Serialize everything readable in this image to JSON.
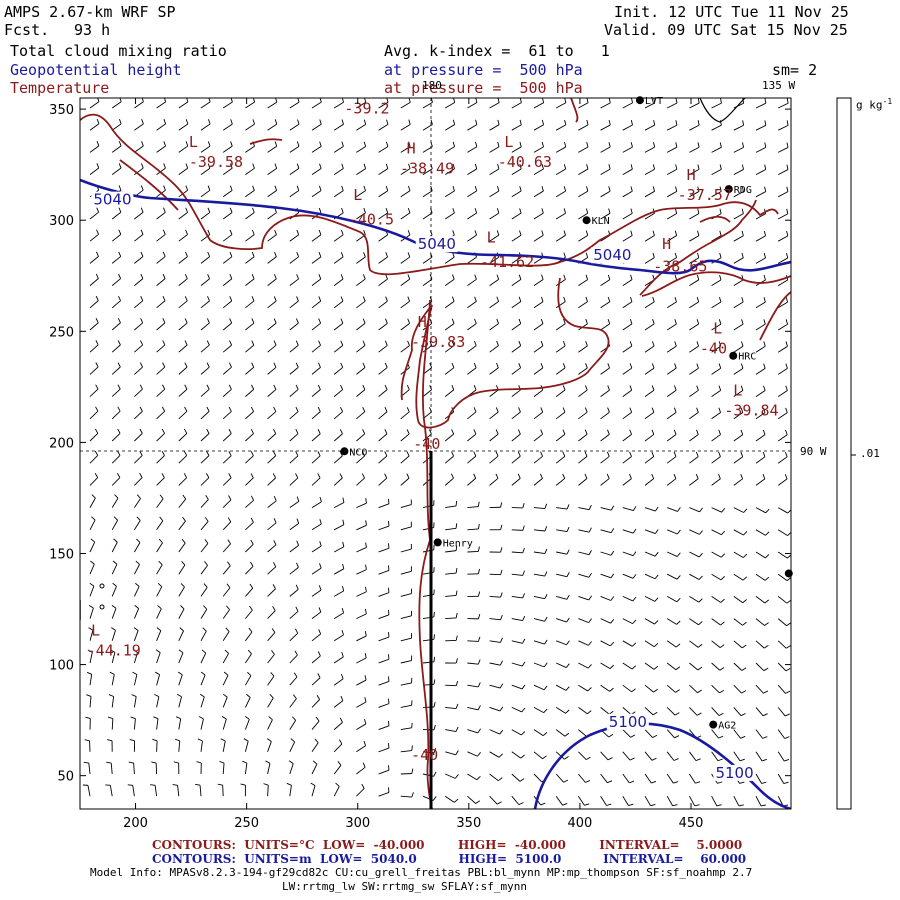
{
  "header": {
    "model": "AMPS 2.67-km WRF SP",
    "fcst_label": "Fcst.",
    "fcst_value": "93 h",
    "init": "Init. 12 UTC Tue 11 Nov 25",
    "valid": "Valid. 09 UTC Sat 15 Nov 25"
  },
  "fields": {
    "field1": "Total cloud mixing ratio",
    "field1_info": "Avg. k-index =  61 to   1",
    "field2": "Geopotential height",
    "field2_info": "at pressure =  500 hPa",
    "field3": "Temperature",
    "field3_info": "at pressure =  500 hPa",
    "smooth": "sm= 2"
  },
  "colorbar": {
    "units": "g kg",
    "units_exp": "-1",
    "tick": ".01"
  },
  "longitudes": {
    "top_left": "180",
    "top_right": "135 W",
    "right": "90 W"
  },
  "axes": {
    "x_ticks": [
      200,
      250,
      300,
      350,
      400,
      450
    ],
    "y_ticks": [
      50,
      100,
      150,
      200,
      250,
      300,
      350
    ],
    "x_range": [
      175,
      495
    ],
    "y_range": [
      35,
      355
    ]
  },
  "stations": [
    {
      "name": "LVT",
      "x": 427,
      "y": 354
    },
    {
      "name": "RDG",
      "x": 467,
      "y": 314
    },
    {
      "name": "KLN",
      "x": 403,
      "y": 300
    },
    {
      "name": "HRC",
      "x": 469,
      "y": 239
    },
    {
      "name": "NCO",
      "x": 294,
      "y": 196
    },
    {
      "name": "Henry",
      "x": 336,
      "y": 155
    },
    {
      "name": "AG2",
      "x": 460,
      "y": 73
    },
    {
      "name": "",
      "x": 494,
      "y": 141
    }
  ],
  "temperature_labels": [
    {
      "text": "-39.2",
      "x": 294,
      "y": 348
    },
    {
      "text": "L",
      "x": 224,
      "y": 333
    },
    {
      "text": "-39.58",
      "x": 224,
      "y": 324
    },
    {
      "text": "H",
      "x": 322,
      "y": 330
    },
    {
      "text": "-38.49",
      "x": 319,
      "y": 321
    },
    {
      "text": "L",
      "x": 366,
      "y": 333
    },
    {
      "text": "-40.63",
      "x": 363,
      "y": 324
    },
    {
      "text": "H",
      "x": 448,
      "y": 318
    },
    {
      "text": "-37.57",
      "x": 444,
      "y": 309
    },
    {
      "text": "L",
      "x": 298,
      "y": 309
    },
    {
      "text": "-40.5",
      "x": 296,
      "y": 298
    },
    {
      "text": "L",
      "x": 358,
      "y": 290
    },
    {
      "text": "-41.62",
      "x": 355,
      "y": 279
    },
    {
      "text": "H",
      "x": 437,
      "y": 287
    },
    {
      "text": "-38.65",
      "x": 433,
      "y": 277
    },
    {
      "text": "H",
      "x": 327,
      "y": 252
    },
    {
      "text": "-39.83",
      "x": 324,
      "y": 243
    },
    {
      "text": "L",
      "x": 460,
      "y": 249
    },
    {
      "text": "-40",
      "x": 454,
      "y": 240
    },
    {
      "text": "L",
      "x": 469,
      "y": 221
    },
    {
      "text": "-39.84",
      "x": 465,
      "y": 212
    },
    {
      "text": "-40",
      "x": 325,
      "y": 197
    },
    {
      "text": "L",
      "x": 180,
      "y": 113
    },
    {
      "text": "-44.19",
      "x": 178,
      "y": 104
    },
    {
      "text": "-40",
      "x": 324,
      "y": 57
    }
  ],
  "height_labels": [
    {
      "text": "5040",
      "x": 181,
      "y": 307
    },
    {
      "text": "5040",
      "x": 327,
      "y": 287
    },
    {
      "text": "5040",
      "x": 406,
      "y": 282
    },
    {
      "text": "5100",
      "x": 413,
      "y": 72
    },
    {
      "text": "5100",
      "x": 461,
      "y": 49
    }
  ],
  "footer": {
    "contours1": "CONTOURS:  UNITS=°C  LOW=  -40.000        HIGH=  -40.000        INTERVAL=    5.0000",
    "contours2": "CONTOURS:  UNITS=m  LOW=  5040.0          HIGH=  5100.0          INTERVAL=    60.000",
    "model_info": "Model Info: MPASv8.2.3-194-gf29cd82c CU:cu_grell_freitas PBL:bl_mynn MP:mp_thompson SF:sf_noahmp 2.7",
    "model_info2": "LW:rrtmg_lw SW:rrtmg_sw SFLAY:sf_mynn"
  },
  "colors": {
    "height": "#1a1a9e",
    "temperature": "#8b1a1a",
    "footer_red": "#8b1a1a",
    "footer_blue": "#1a1a9e"
  }
}
